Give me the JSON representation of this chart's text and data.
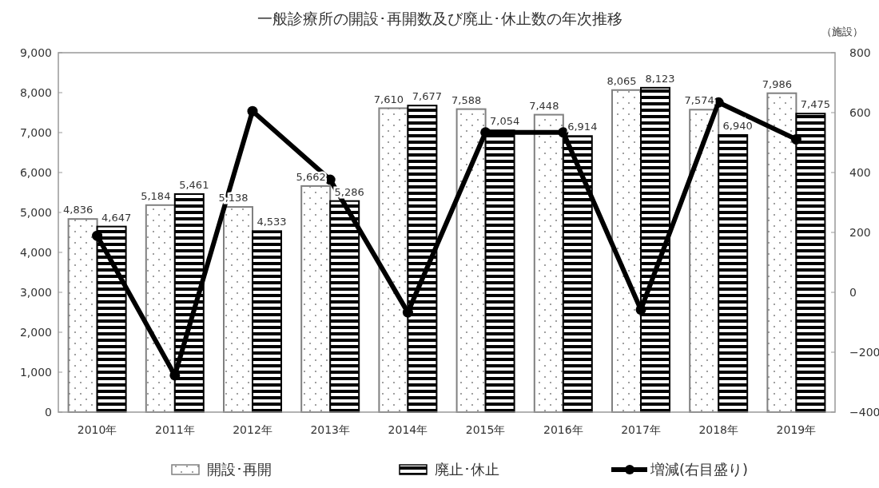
{
  "chart_data": {
    "type": "bar",
    "title": "一般診療所の開設･再開数及び廃止･休止数の年次推移",
    "y2label": "（施設）",
    "categories": [
      "2010年",
      "2011年",
      "2012年",
      "2013年",
      "2014年",
      "2015年",
      "2016年",
      "2017年",
      "2018年",
      "2019年"
    ],
    "series": [
      {
        "name": "開設･再開",
        "color": "#808080",
        "values": [
          4836,
          5184,
          5138,
          5662,
          7610,
          7588,
          7448,
          8065,
          7574,
          7986
        ],
        "value_labels": [
          "4,836",
          "5,184",
          "5,138",
          "5,662",
          "7,610",
          "7,588",
          "7,448",
          "8,065",
          "7,574",
          "7,986"
        ]
      },
      {
        "name": "廃止･休止",
        "color": "#000000",
        "values": [
          4647,
          5461,
          4533,
          5286,
          7677,
          7054,
          6914,
          8123,
          6940,
          7475
        ],
        "value_labels": [
          "4,647",
          "5,461",
          "4,533",
          "5,286",
          "7,677",
          "7,054",
          "6,914",
          "8,123",
          "6,940",
          "7,475"
        ]
      },
      {
        "name": "増減(右目盛り)",
        "type": "line",
        "axis": "y2",
        "color": "#000000",
        "marker": "circle",
        "values": [
          189,
          -277,
          605,
          376,
          -67,
          534,
          534,
          -58,
          634,
          511
        ]
      }
    ],
    "ylim": [
      0,
      9000
    ],
    "yticks": [
      {
        "value": 0,
        "label": "0"
      },
      {
        "value": 1000,
        "label": "1,000"
      },
      {
        "value": 2000,
        "label": "2,000"
      },
      {
        "value": 3000,
        "label": "3,000"
      },
      {
        "value": 4000,
        "label": "4,000"
      },
      {
        "value": 5000,
        "label": "5,000"
      },
      {
        "value": 6000,
        "label": "6,000"
      },
      {
        "value": 7000,
        "label": "7,000"
      },
      {
        "value": 8000,
        "label": "8,000"
      },
      {
        "value": 9000,
        "label": "9,000"
      }
    ],
    "y2lim": [
      -400,
      800
    ],
    "y2ticks": [
      {
        "value": -400,
        "label": "−400"
      },
      {
        "value": -200,
        "label": "−200"
      },
      0,
      200,
      400,
      600,
      800
    ],
    "grid": false,
    "legend": "bottom"
  }
}
